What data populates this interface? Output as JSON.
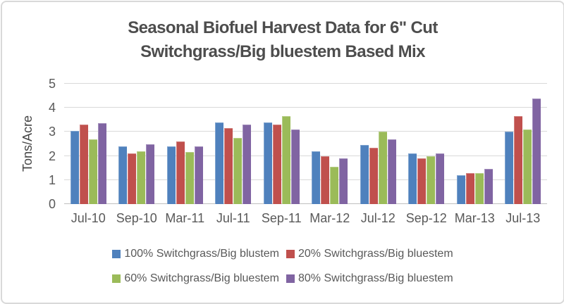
{
  "title": {
    "line1": "Seasonal Biofuel Harvest Data for 6\" Cut",
    "line2": "Switchgrass/Big bluestem Based Mix"
  },
  "chart_data": {
    "type": "bar",
    "title": "Seasonal Biofuel Harvest Data for 6\" Cut Switchgrass/Big bluestem Based Mix",
    "xlabel": "",
    "ylabel": "Tons/Acre",
    "ylim": [
      0,
      5
    ],
    "yticks": [
      0,
      1,
      2,
      3,
      4,
      5
    ],
    "grid": true,
    "legend_position": "bottom",
    "categories": [
      "Jul-10",
      "Sep-10",
      "Mar-11",
      "Jul-11",
      "Sep-11",
      "Mar-12",
      "Jul-12",
      "Sep-12",
      "Mar-13",
      "Jul-13"
    ],
    "series": [
      {
        "name": "100% Switchgrass/Big blustem",
        "color": "#4F81BD",
        "values": [
          3.05,
          2.4,
          2.4,
          3.4,
          3.4,
          2.2,
          2.45,
          2.1,
          1.2,
          3.0
        ]
      },
      {
        "name": "20% Switchgrass/Big bluestem",
        "color": "#C0504D",
        "values": [
          3.3,
          2.1,
          2.6,
          3.15,
          3.3,
          2.0,
          2.35,
          1.9,
          1.3,
          3.65
        ]
      },
      {
        "name": "60% Switchgrass/Big bluestem",
        "color": "#9BBB59",
        "values": [
          2.7,
          2.2,
          2.15,
          2.75,
          3.65,
          1.55,
          3.0,
          2.0,
          1.3,
          3.1
        ]
      },
      {
        "name": "80% Switchgrass/Big bluestem",
        "color": "#8064A2",
        "values": [
          3.35,
          2.5,
          2.4,
          3.3,
          3.1,
          1.9,
          2.7,
          2.1,
          1.45,
          4.4
        ]
      }
    ]
  },
  "colors": {
    "title_text": "#4d4d4d",
    "axis_text": "#595959",
    "gridline": "#d9d9d9",
    "axis_line": "#bfbfbf",
    "frame_border": "#d9d9d9"
  }
}
